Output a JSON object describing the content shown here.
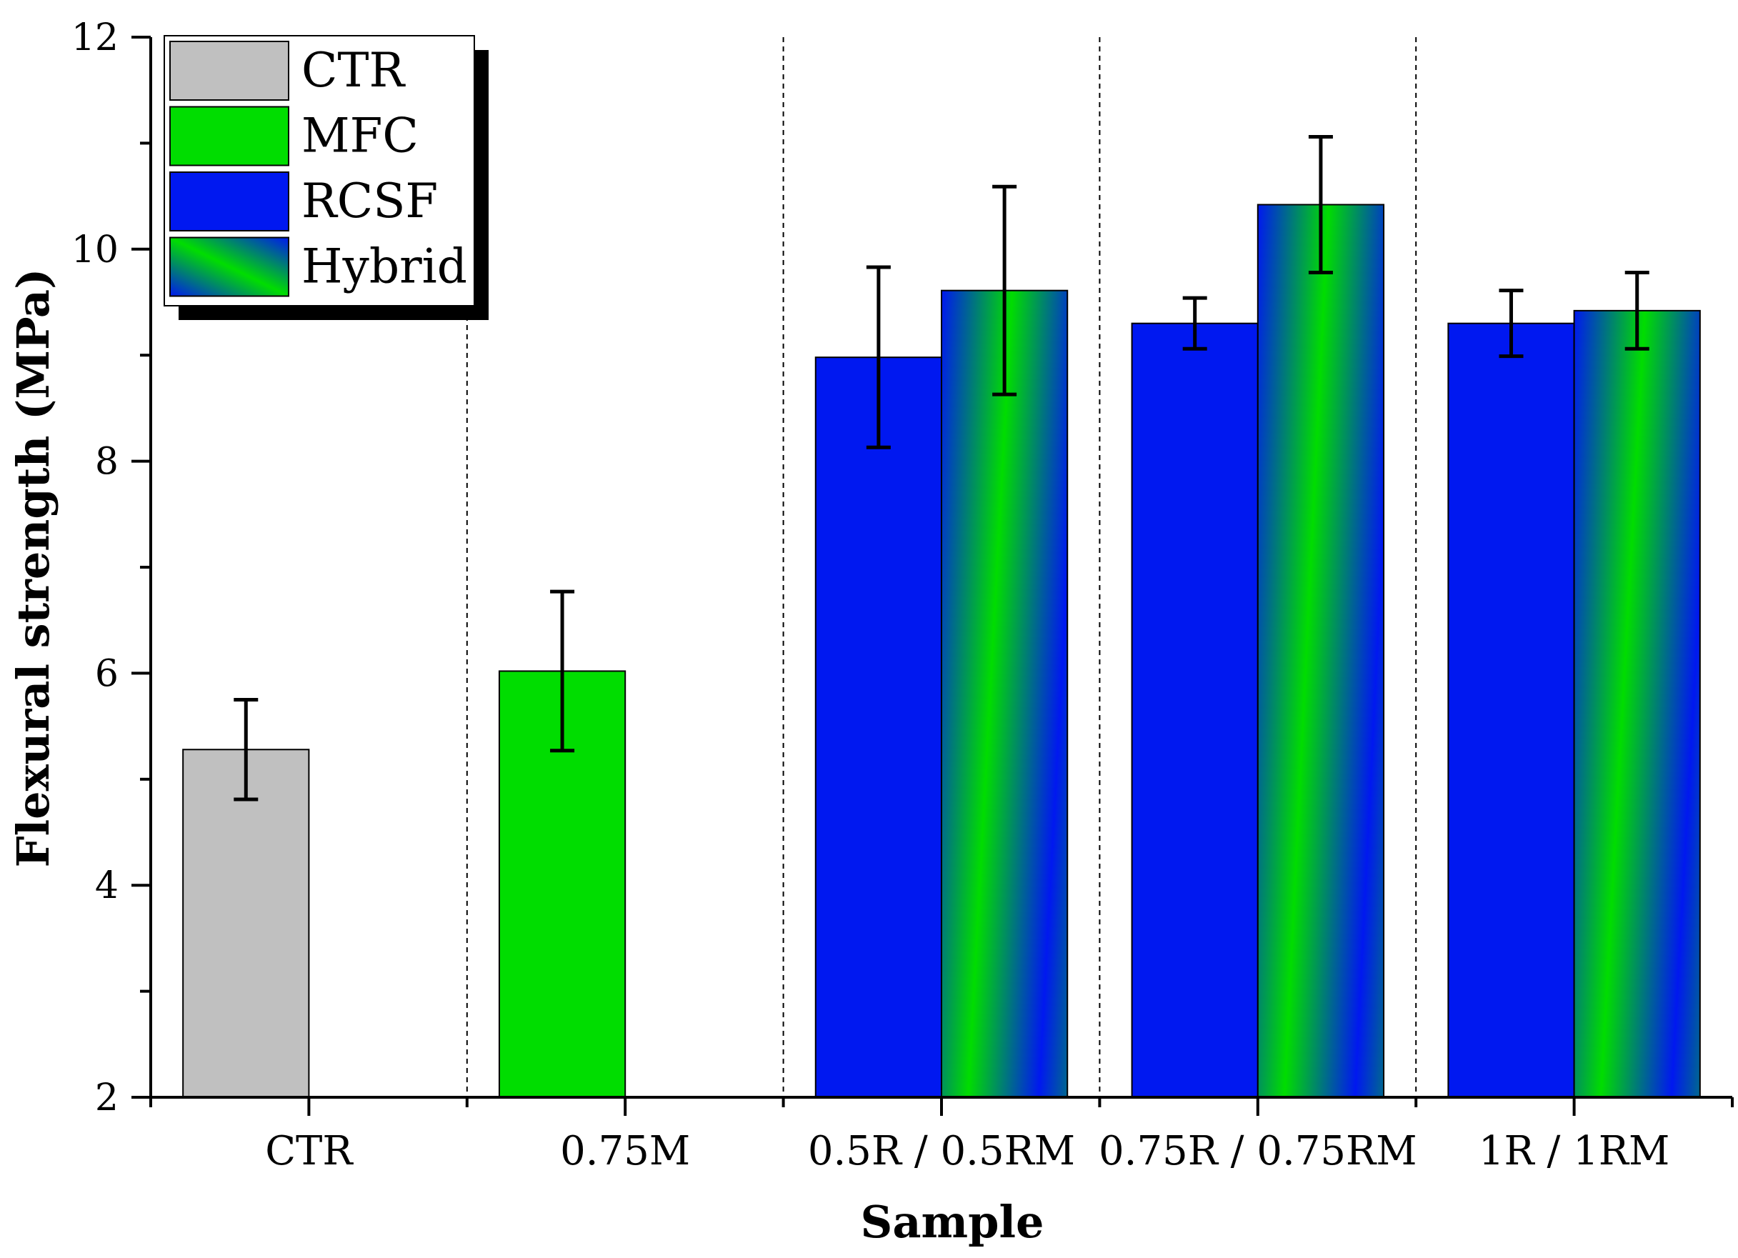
{
  "chart_data": {
    "type": "bar",
    "xlabel": "Sample",
    "ylabel": "Flexural strength (MPa)",
    "ylim": [
      2,
      12
    ],
    "yticks": [
      2,
      4,
      6,
      8,
      10,
      12
    ],
    "grid": false,
    "legend_position": "top-left",
    "categories": [
      "CTR",
      "0.75M",
      "0.5R / 0.5RM",
      "0.75R / 0.75RM",
      "1R / 1RM"
    ],
    "series": [
      {
        "name": "CTR",
        "color": "#c0c0c0",
        "values": [
          5.28,
          null,
          null,
          null,
          null
        ],
        "errors": [
          0.47,
          null,
          null,
          null,
          null
        ]
      },
      {
        "name": "MFC",
        "color": "#00dd00",
        "values": [
          null,
          6.02,
          null,
          null,
          null
        ],
        "errors": [
          null,
          0.75,
          null,
          null,
          null
        ]
      },
      {
        "name": "RCSF",
        "color": "#0018f0",
        "values": [
          null,
          null,
          8.98,
          9.3,
          9.3
        ],
        "errors": [
          null,
          null,
          0.85,
          0.24,
          0.31
        ]
      },
      {
        "name": "Hybrid",
        "color": "gradient",
        "values": [
          null,
          null,
          9.61,
          10.42,
          9.42
        ],
        "errors": [
          null,
          null,
          0.98,
          0.64,
          0.36
        ]
      }
    ]
  }
}
